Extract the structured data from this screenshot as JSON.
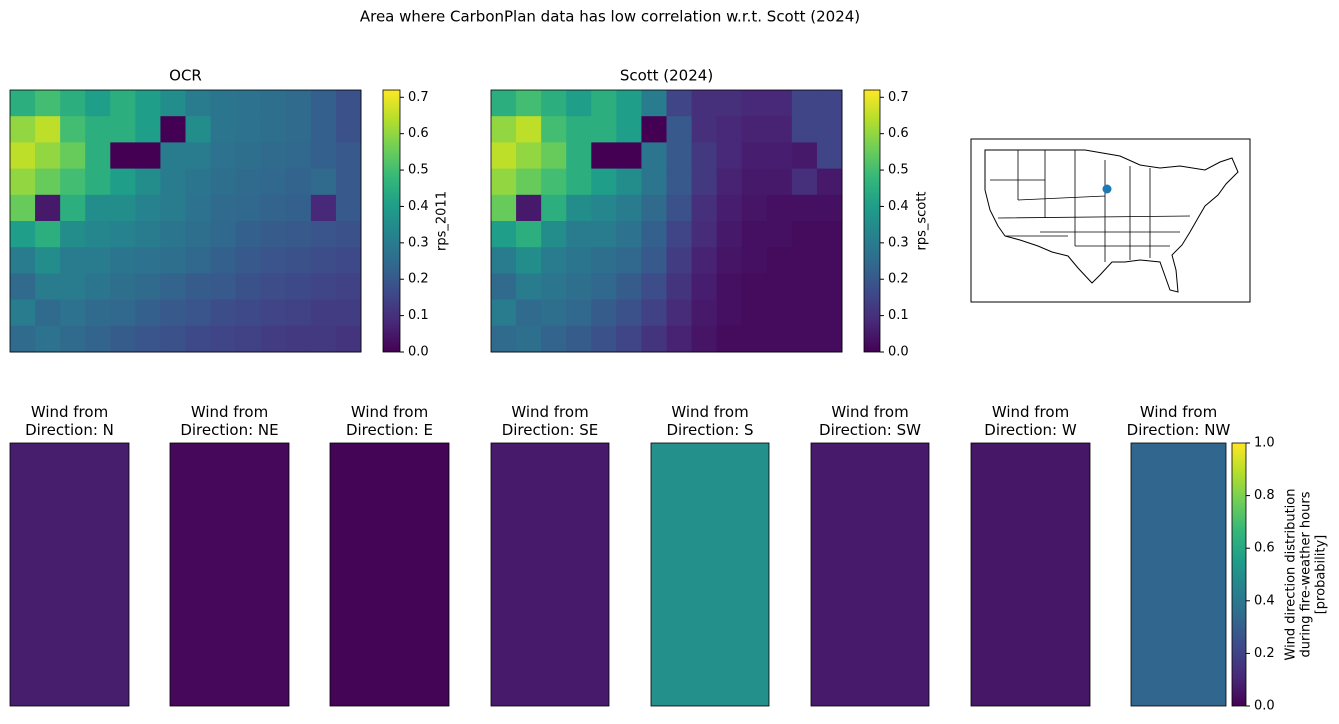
{
  "title": "Area where CarbonPlan data has low correlation w.r.t. Scott (2024)",
  "chart_data": [
    {
      "type": "heatmap",
      "title": "OCR",
      "colorbar_label": "rps_2011",
      "clim": [
        0,
        0.72
      ],
      "cticks": [
        {
          "value": 0,
          "label": "0.0"
        },
        {
          "value": 0.1,
          "label": "0.1"
        },
        {
          "value": 0.2,
          "label": "0.2"
        },
        {
          "value": 0.3,
          "label": "0.3"
        },
        {
          "value": 0.4,
          "label": "0.4"
        },
        {
          "value": 0.5,
          "label": "0.5"
        },
        {
          "value": 0.6,
          "label": "0.6"
        },
        {
          "value": 0.7,
          "label": "0.7"
        }
      ],
      "values": [
        [
          0.45,
          0.5,
          0.45,
          0.4,
          0.45,
          0.4,
          0.35,
          0.3,
          0.28,
          0.27,
          0.26,
          0.25,
          0.22,
          0.18
        ],
        [
          0.6,
          0.65,
          0.5,
          0.45,
          0.45,
          0.4,
          0.0,
          0.35,
          0.28,
          0.27,
          0.26,
          0.25,
          0.22,
          0.18
        ],
        [
          0.65,
          0.6,
          0.55,
          0.45,
          0.0,
          0.0,
          0.3,
          0.3,
          0.27,
          0.26,
          0.25,
          0.24,
          0.22,
          0.2
        ],
        [
          0.6,
          0.55,
          0.5,
          0.45,
          0.4,
          0.35,
          0.3,
          0.28,
          0.26,
          0.25,
          0.24,
          0.23,
          0.25,
          0.2
        ],
        [
          0.55,
          0.05,
          0.45,
          0.35,
          0.35,
          0.32,
          0.3,
          0.27,
          0.25,
          0.24,
          0.23,
          0.22,
          0.08,
          0.2
        ],
        [
          0.4,
          0.45,
          0.35,
          0.33,
          0.32,
          0.3,
          0.28,
          0.26,
          0.24,
          0.22,
          0.21,
          0.2,
          0.19,
          0.18
        ],
        [
          0.3,
          0.35,
          0.3,
          0.3,
          0.28,
          0.27,
          0.26,
          0.24,
          0.22,
          0.2,
          0.19,
          0.18,
          0.17,
          0.16
        ],
        [
          0.25,
          0.3,
          0.3,
          0.28,
          0.26,
          0.25,
          0.23,
          0.21,
          0.2,
          0.18,
          0.17,
          0.16,
          0.15,
          0.14
        ],
        [
          0.3,
          0.25,
          0.27,
          0.25,
          0.24,
          0.22,
          0.2,
          0.19,
          0.17,
          0.16,
          0.15,
          0.14,
          0.13,
          0.13
        ],
        [
          0.25,
          0.27,
          0.25,
          0.23,
          0.21,
          0.19,
          0.18,
          0.16,
          0.15,
          0.14,
          0.13,
          0.12,
          0.12,
          0.11
        ]
      ]
    },
    {
      "type": "heatmap",
      "title": "Scott (2024)",
      "colorbar_label": "rps_scott",
      "clim": [
        0,
        0.72
      ],
      "cticks": [
        {
          "value": 0,
          "label": "0.0"
        },
        {
          "value": 0.1,
          "label": "0.1"
        },
        {
          "value": 0.2,
          "label": "0.2"
        },
        {
          "value": 0.3,
          "label": "0.3"
        },
        {
          "value": 0.4,
          "label": "0.4"
        },
        {
          "value": 0.5,
          "label": "0.5"
        },
        {
          "value": 0.6,
          "label": "0.6"
        },
        {
          "value": 0.7,
          "label": "0.7"
        }
      ],
      "values": [
        [
          0.45,
          0.5,
          0.45,
          0.4,
          0.45,
          0.4,
          0.3,
          0.15,
          0.1,
          0.1,
          0.08,
          0.08,
          0.15,
          0.15
        ],
        [
          0.6,
          0.65,
          0.5,
          0.45,
          0.45,
          0.4,
          0.0,
          0.2,
          0.1,
          0.08,
          0.07,
          0.07,
          0.15,
          0.15
        ],
        [
          0.65,
          0.6,
          0.55,
          0.45,
          0.0,
          0.0,
          0.28,
          0.2,
          0.12,
          0.08,
          0.06,
          0.06,
          0.05,
          0.15
        ],
        [
          0.6,
          0.55,
          0.5,
          0.45,
          0.4,
          0.35,
          0.28,
          0.2,
          0.12,
          0.07,
          0.05,
          0.05,
          0.1,
          0.05
        ],
        [
          0.55,
          0.05,
          0.45,
          0.35,
          0.33,
          0.3,
          0.25,
          0.18,
          0.1,
          0.06,
          0.04,
          0.03,
          0.03,
          0.03
        ],
        [
          0.4,
          0.45,
          0.35,
          0.3,
          0.3,
          0.27,
          0.22,
          0.15,
          0.09,
          0.05,
          0.03,
          0.03,
          0.02,
          0.02
        ],
        [
          0.3,
          0.35,
          0.3,
          0.28,
          0.26,
          0.24,
          0.2,
          0.13,
          0.07,
          0.04,
          0.03,
          0.02,
          0.02,
          0.02
        ],
        [
          0.25,
          0.3,
          0.28,
          0.26,
          0.24,
          0.21,
          0.17,
          0.11,
          0.06,
          0.03,
          0.02,
          0.02,
          0.02,
          0.02
        ],
        [
          0.3,
          0.25,
          0.26,
          0.24,
          0.21,
          0.18,
          0.14,
          0.09,
          0.05,
          0.03,
          0.02,
          0.02,
          0.02,
          0.02
        ],
        [
          0.25,
          0.26,
          0.23,
          0.21,
          0.18,
          0.15,
          0.11,
          0.07,
          0.04,
          0.02,
          0.02,
          0.02,
          0.02,
          0.02
        ]
      ]
    },
    {
      "type": "tiles",
      "colorbar_label": "Wind direction distribution\nduring fire-weather hours\n[probability]",
      "clim": [
        0,
        1
      ],
      "cticks": [
        {
          "value": 0,
          "label": "0.0"
        },
        {
          "value": 0.2,
          "label": "0.2"
        },
        {
          "value": 0.4,
          "label": "0.4"
        },
        {
          "value": 0.6,
          "label": "0.6"
        },
        {
          "value": 0.8,
          "label": "0.8"
        },
        {
          "value": 1,
          "label": "1.0"
        }
      ],
      "categories": [
        "Wind from\nDirection: N",
        "Wind from\nDirection: NE",
        "Wind from\nDirection: E",
        "Wind from\nDirection: SE",
        "Wind from\nDirection: S",
        "Wind from\nDirection: SW",
        "Wind from\nDirection: W",
        "Wind from\nDirection: NW"
      ],
      "values": [
        0.08,
        0.02,
        0.01,
        0.07,
        0.5,
        0.07,
        0.06,
        0.33
      ]
    }
  ]
}
